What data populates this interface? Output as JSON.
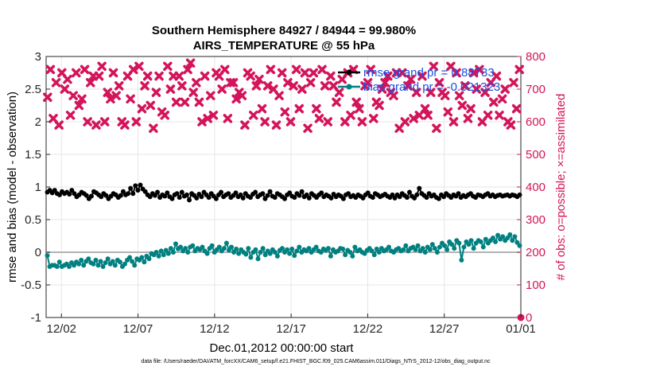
{
  "chart_data": {
    "type": "line",
    "title_line1": "Southern Hemisphere 84927 / 84944 = 99.980%",
    "title_line2": "AIRS_TEMPERATURE @ 55 hPa",
    "xlabel": "Dec.01,2012 00:00:00 start",
    "ylabel_left": "rmse and bias (model - observation)",
    "ylabel_right": "# of obs: o=possible; ×=assimilated",
    "xlim": [
      0,
      31
    ],
    "ylim_left": [
      -1,
      3
    ],
    "ylim_right": [
      0,
      800
    ],
    "x_ticks": [
      {
        "x": 1,
        "label": "12/02"
      },
      {
        "x": 6,
        "label": "12/07"
      },
      {
        "x": 11,
        "label": "12/12"
      },
      {
        "x": 16,
        "label": "12/17"
      },
      {
        "x": 21,
        "label": "12/22"
      },
      {
        "x": 26,
        "label": "12/27"
      },
      {
        "x": 31,
        "label": "01/01"
      }
    ],
    "y_ticks_left": [
      "-1",
      "-0.5",
      "0",
      "0.5",
      "1",
      "1.5",
      "2",
      "2.5",
      "3"
    ],
    "y_ticks_right": [
      "0",
      "100",
      "200",
      "300",
      "400",
      "500",
      "600",
      "700",
      "800"
    ],
    "grid": true,
    "legend_position": "top-right",
    "series": [
      {
        "name": "rmse grand pr = 0.88733",
        "color": "#000000",
        "marker": "circle",
        "axis": "left",
        "values": [
          0.92,
          0.95,
          0.91,
          0.95,
          0.9,
          0.88,
          0.93,
          0.9,
          0.92,
          0.89,
          0.95,
          0.9,
          0.85,
          0.88,
          0.92,
          0.9,
          0.87,
          0.82,
          0.86,
          0.93,
          0.91,
          0.88,
          0.85,
          0.9,
          0.87,
          0.82,
          0.86,
          0.9,
          0.88,
          0.84,
          0.87,
          0.93,
          0.88,
          0.9,
          0.98,
          0.9,
          1.02,
          0.95,
          1.03,
          0.97,
          0.93,
          0.88,
          0.85,
          0.9,
          0.87,
          0.92,
          0.84,
          0.88,
          0.86,
          0.91,
          0.85,
          0.82,
          0.88,
          0.9,
          0.84,
          0.92,
          0.86,
          0.88,
          0.8,
          0.9,
          0.87,
          0.83,
          0.89,
          0.85,
          0.92,
          0.88,
          0.84,
          0.9,
          0.86,
          0.82,
          0.88,
          0.92,
          0.85,
          0.88,
          0.9,
          0.84,
          0.87,
          0.91,
          0.85,
          0.88,
          0.83,
          0.9,
          0.86,
          0.84,
          0.89,
          0.92,
          0.85,
          0.88,
          0.9,
          0.82,
          0.87,
          0.93,
          0.86,
          0.84,
          0.9,
          0.88,
          0.85,
          0.82,
          0.88,
          0.91,
          0.86,
          0.84,
          0.9,
          0.87,
          0.93,
          0.85,
          0.88,
          0.83,
          0.9,
          0.87,
          0.84,
          0.88,
          0.91,
          0.85,
          0.88,
          0.86,
          0.83,
          0.89,
          0.85,
          0.88,
          0.86,
          0.82,
          0.88,
          0.9,
          0.85,
          0.87,
          0.84,
          0.88,
          0.86,
          0.83,
          0.88,
          0.91,
          0.86,
          0.84,
          0.9,
          0.88,
          0.85,
          0.87,
          0.89,
          0.86,
          0.84,
          0.88,
          0.83,
          0.88,
          0.85,
          0.9,
          0.87,
          0.84,
          0.92,
          0.86,
          0.83,
          0.88,
          0.98,
          0.9,
          0.87,
          0.84,
          0.9,
          0.86,
          0.88,
          0.84,
          0.82,
          0.88,
          0.85,
          0.9,
          0.87,
          0.84,
          0.88,
          0.86,
          0.9,
          0.84,
          0.87,
          0.85,
          0.88,
          0.9,
          0.86,
          0.84,
          0.88,
          0.87,
          0.85,
          0.88,
          0.9,
          0.86,
          0.88,
          0.85,
          0.87,
          0.88,
          0.86,
          0.87,
          0.88,
          0.86,
          0.88,
          0.87,
          0.85,
          0.88
        ]
      },
      {
        "name": "bias grand pr = -0.021323",
        "color": "#008080",
        "marker": "circle",
        "axis": "left",
        "values": [
          -0.05,
          -0.22,
          -0.2,
          -0.2,
          -0.22,
          -0.15,
          -0.22,
          -0.2,
          -0.18,
          -0.22,
          -0.16,
          -0.2,
          -0.15,
          -0.18,
          -0.12,
          -0.2,
          -0.14,
          -0.1,
          -0.16,
          -0.18,
          -0.12,
          -0.2,
          -0.14,
          -0.22,
          -0.16,
          -0.1,
          -0.18,
          -0.14,
          -0.2,
          -0.12,
          -0.15,
          -0.22,
          -0.18,
          -0.12,
          -0.08,
          -0.14,
          -0.2,
          -0.1,
          -0.12,
          -0.08,
          -0.15,
          -0.06,
          -0.1,
          -0.02,
          -0.04,
          0.0,
          -0.06,
          0.02,
          -0.04,
          0.03,
          -0.02,
          0.06,
          0.0,
          0.13,
          0.05,
          0.08,
          0.02,
          0.06,
          0.0,
          0.08,
          0.1,
          0.02,
          0.06,
          0.04,
          0.08,
          0.02,
          -0.02,
          0.06,
          0.1,
          0.0,
          0.04,
          0.08,
          0.02,
          0.06,
          0.14,
          0.03,
          0.08,
          0.0,
          0.05,
          -0.02,
          0.04,
          0.0,
          -0.03,
          0.06,
          -0.08,
          0.0,
          0.04,
          -0.1,
          0.0,
          0.06,
          -0.04,
          0.02,
          -0.02,
          0.04,
          0.0,
          -0.06,
          0.03,
          0.06,
          0.0,
          0.04,
          -0.02,
          0.05,
          -0.05,
          0.02,
          0.08,
          0.0,
          0.04,
          0.02,
          0.06,
          0.0,
          0.04,
          0.08,
          0.02,
          0.0,
          0.05,
          0.03,
          0.06,
          -0.06,
          0.04,
          0.0,
          0.02,
          0.06,
          0.05,
          -0.04,
          0.03,
          0.0,
          -0.06,
          0.08,
          0.02,
          0.04,
          0.0,
          -0.02,
          0.03,
          0.06,
          0.02,
          -0.04,
          0.05,
          0.0,
          0.06,
          0.02,
          0.04,
          0.08,
          0.02,
          0.0,
          0.04,
          0.06,
          0.02,
          0.04,
          0.1,
          0.02,
          0.06,
          0.08,
          0.04,
          0.1,
          0.02,
          0.06,
          0.0,
          0.08,
          0.04,
          0.12,
          0.06,
          0.0,
          0.08,
          0.14,
          0.1,
          0.04,
          0.16,
          0.12,
          0.06,
          0.18,
          0.14,
          -0.12,
          0.08,
          0.16,
          0.12,
          0.18,
          0.06,
          0.14,
          0.18,
          0.16,
          0.08,
          0.2,
          0.14,
          0.18,
          0.22,
          0.16,
          0.26,
          0.2,
          0.24,
          0.18,
          0.22,
          0.27,
          0.18,
          0.24,
          0.15,
          0.1
        ]
      },
      {
        "name": "possible",
        "color": "#d4145a",
        "marker": "circle",
        "axis": "right",
        "values": [
          0
        ]
      },
      {
        "name": "assimilated",
        "color": "#d4145a",
        "marker": "cross",
        "axis": "right",
        "values": [
          675,
          760,
          610,
          720,
          590,
          750,
          700,
          730,
          620,
          680,
          750,
          650,
          670,
          760,
          600,
          720,
          740,
          590,
          740,
          770,
          600,
          690,
          670,
          750,
          680,
          710,
          600,
          590,
          740,
          670,
          760,
          600,
          770,
          640,
          710,
          740,
          650,
          580,
          690,
          740,
          630,
          620,
          770,
          700,
          740,
          660,
          740,
          710,
          660,
          760,
          780,
          690,
          720,
          660,
          600,
          740,
          610,
          680,
          620,
          750,
          740,
          700,
          760,
          610,
          720,
          720,
          670,
          690,
          680,
          590,
          750,
          740,
          620,
          710,
          730,
          640,
          600,
          710,
          760,
          700,
          590,
          680,
          750,
          630,
          720,
          600,
          710,
          760,
          640,
          700,
          750,
          580,
          720,
          750,
          640,
          610,
          760,
          710,
          600,
          740,
          710,
          660,
          690,
          730,
          600,
          750,
          620,
          760,
          660,
          640,
          600,
          710,
          720,
          760,
          610,
          660,
          650,
          700,
          720,
          740,
          690,
          680,
          750,
          580,
          750,
          600,
          710,
          730,
          610,
          690,
          620,
          740,
          640,
          620,
          690,
          770,
          580,
          720,
          690,
          680,
          630,
          770,
          600,
          750,
          680,
          650,
          710,
          610,
          640,
          750,
          700,
          760,
          600,
          690,
          620,
          720,
          660,
          740,
          620,
          670,
          700,
          600,
          590,
          720,
          640,
          760
        ]
      }
    ],
    "footer": "data file: /Users/raeder/DAI/ATM_forcXX/CAM6_setup/f.e21.FHIST_BGC.f09_025.CAM6assim.011/Diags_NTrS_2012-12/obs_diag_output.nc"
  }
}
